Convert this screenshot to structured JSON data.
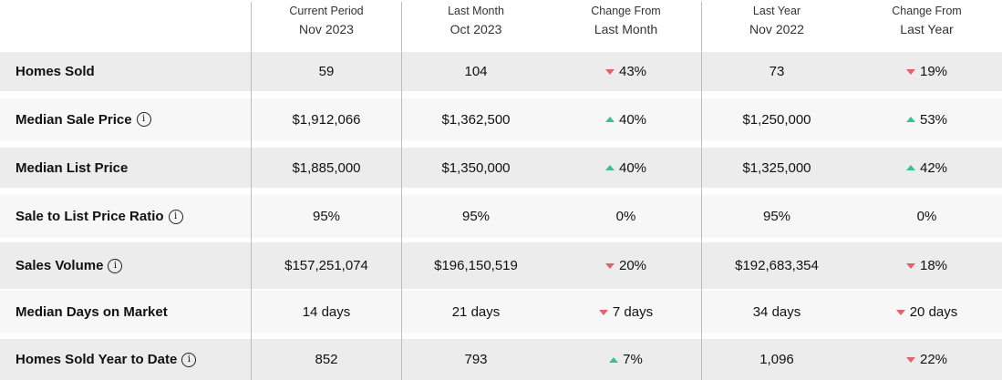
{
  "header": {
    "columns": [
      {
        "line1": "Current Period",
        "line2": "Nov 2023"
      },
      {
        "line1": "Last Month",
        "line2": "Oct 2023"
      },
      {
        "line1": "Change From",
        "line2": "Last Month"
      },
      {
        "line1": "Last Year",
        "line2": "Nov 2022"
      },
      {
        "line1": "Change From",
        "line2": "Last Year"
      }
    ]
  },
  "rows": [
    {
      "label": "Homes Sold",
      "info": false,
      "current": "59",
      "last_month": "104",
      "chg_month": {
        "dir": "down",
        "text": "43%"
      },
      "last_year": "73",
      "chg_year": {
        "dir": "down",
        "text": "19%"
      }
    },
    {
      "label": "Median Sale Price",
      "info": true,
      "current": "$1,912,066",
      "last_month": "$1,362,500",
      "chg_month": {
        "dir": "up",
        "text": "40%"
      },
      "last_year": "$1,250,000",
      "chg_year": {
        "dir": "up",
        "text": "53%"
      }
    },
    {
      "label": "Median List Price",
      "info": false,
      "current": "$1,885,000",
      "last_month": "$1,350,000",
      "chg_month": {
        "dir": "up",
        "text": "40%"
      },
      "last_year": "$1,325,000",
      "chg_year": {
        "dir": "up",
        "text": "42%"
      }
    },
    {
      "label": "Sale to List Price Ratio",
      "info": true,
      "current": "95%",
      "last_month": "95%",
      "chg_month": {
        "dir": "none",
        "text": "0%"
      },
      "last_year": "95%",
      "chg_year": {
        "dir": "none",
        "text": "0%"
      }
    },
    {
      "label": "Sales Volume",
      "info": true,
      "current": "$157,251,074",
      "last_month": "$196,150,519",
      "chg_month": {
        "dir": "down",
        "text": "20%"
      },
      "last_year": "$192,683,354",
      "chg_year": {
        "dir": "down",
        "text": "18%"
      }
    },
    {
      "label": "Median Days on Market",
      "info": false,
      "current": "14 days",
      "last_month": "21 days",
      "chg_month": {
        "dir": "down",
        "text": "7 days"
      },
      "last_year": "34 days",
      "chg_year": {
        "dir": "down",
        "text": "20 days"
      }
    },
    {
      "label": "Homes Sold Year to Date",
      "info": true,
      "current": "852",
      "last_month": "793",
      "chg_month": {
        "dir": "up",
        "text": "7%"
      },
      "last_year": "1,096",
      "chg_year": {
        "dir": "down",
        "text": "22%"
      }
    }
  ],
  "icons": {
    "info": "info-circle-icon",
    "up": "triangle-up-icon",
    "down": "triangle-down-icon"
  },
  "info_glyph": "i",
  "colors": {
    "up": "#3fbf8a",
    "down": "#e0626a",
    "shade_row": "#ececec",
    "light_row": "#f7f7f7"
  }
}
